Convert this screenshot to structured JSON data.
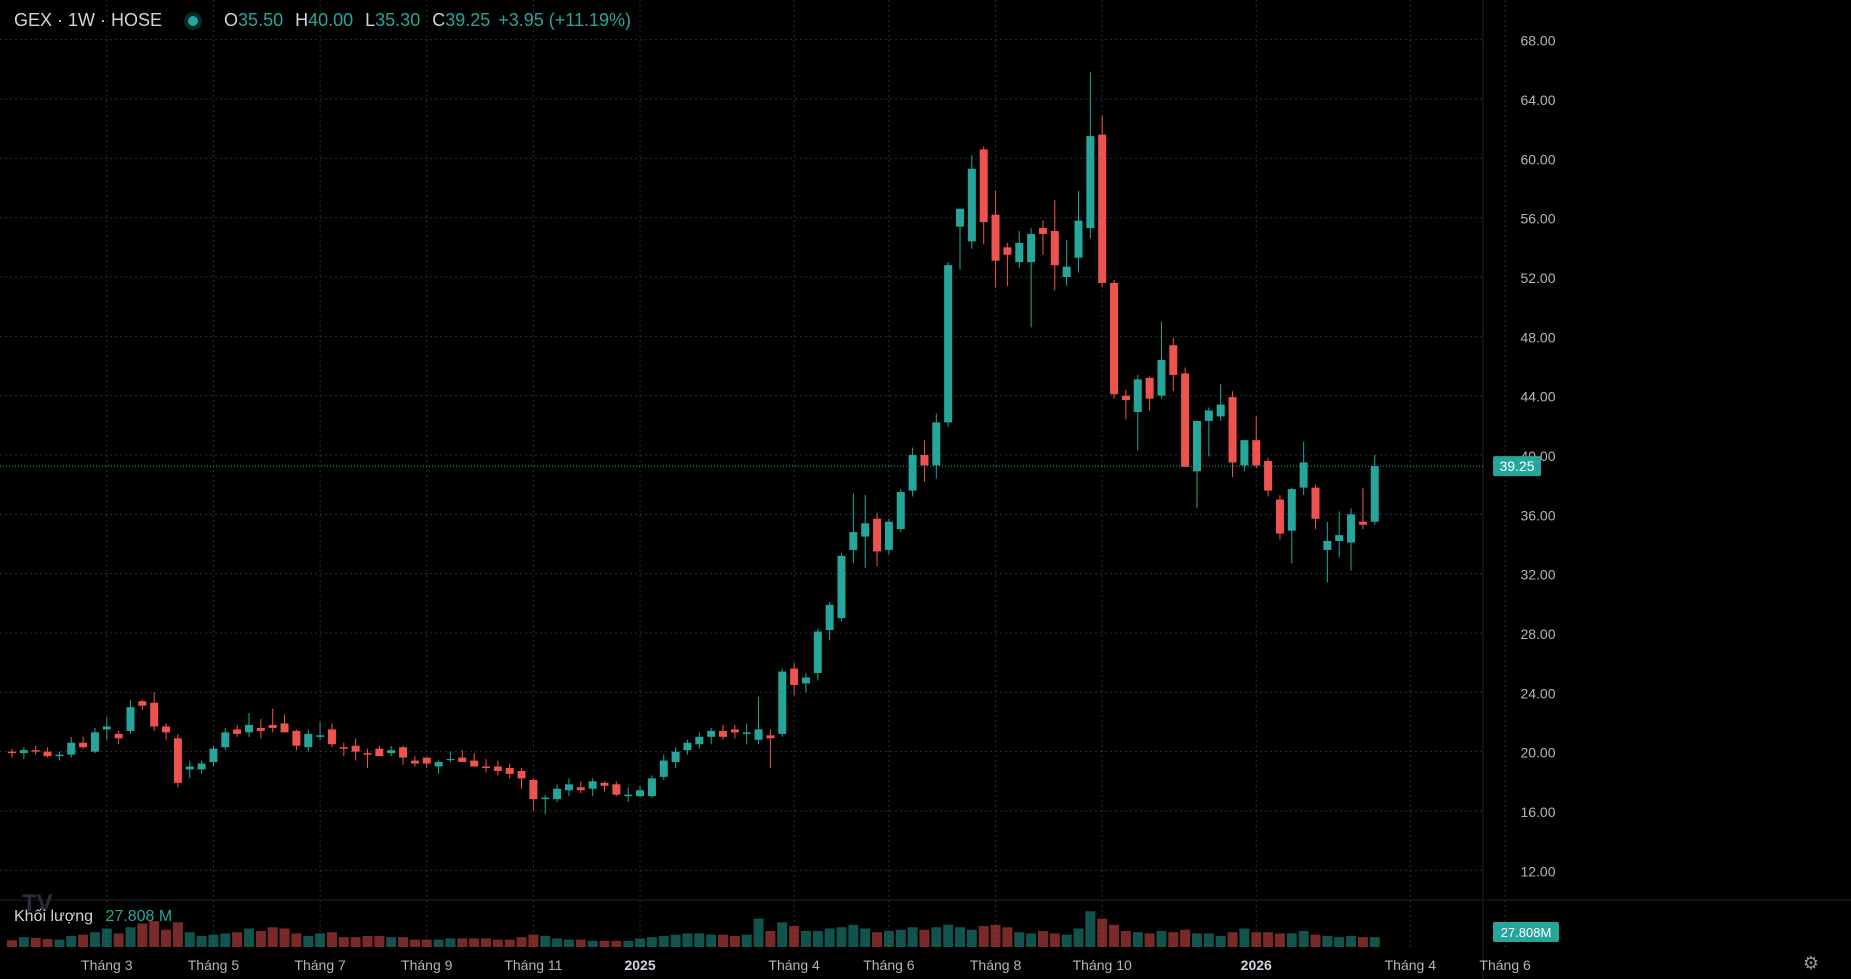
{
  "header": {
    "symbol": "GEX · 1W · HOSE",
    "o_key": "O",
    "o_val": "35.50",
    "h_key": "H",
    "h_val": "40.00",
    "l_key": "L",
    "l_val": "35.30",
    "c_key": "C",
    "c_val": "39.25",
    "change": "+3.95 (+11.19%)"
  },
  "volume_pane": {
    "label": "Khối lượng",
    "value": "27.808 M",
    "badge": "27.808M"
  },
  "last_price_badge": "39.25",
  "colors": {
    "up": "#26a69a",
    "down": "#ef5350",
    "background": "#000000",
    "grid": "#2a2e39",
    "text": "#d1d4dc"
  },
  "icons": {
    "settings": "gear-icon",
    "logo": "tradingview-logo-icon"
  },
  "chart_data": {
    "type": "candlestick",
    "ylim": [
      10,
      70
    ],
    "y_ticks": [
      "68.00",
      "64.00",
      "60.00",
      "56.00",
      "52.00",
      "48.00",
      "44.00",
      "40.00",
      "36.00",
      "32.00",
      "28.00",
      "24.00",
      "20.00",
      "16.00",
      "12.00"
    ],
    "x_tick_labels": [
      {
        "label": "Tháng 3",
        "bar": 8,
        "bold": false
      },
      {
        "label": "Tháng 5",
        "bar": 17,
        "bold": false
      },
      {
        "label": "Tháng 7",
        "bar": 26,
        "bold": false
      },
      {
        "label": "Tháng 9",
        "bar": 35,
        "bold": false
      },
      {
        "label": "Tháng 11",
        "bar": 44,
        "bold": false
      },
      {
        "label": "2025",
        "bar": 53,
        "bold": true
      },
      {
        "label": "Tháng 4",
        "bar": 66,
        "bold": false
      },
      {
        "label": "Tháng 6",
        "bar": 74,
        "bold": false
      },
      {
        "label": "Tháng 8",
        "bar": 83,
        "bold": false
      },
      {
        "label": "Tháng 10",
        "bar": 92,
        "bold": false
      },
      {
        "label": "2026",
        "bar": 105,
        "bold": true
      },
      {
        "label": "Tháng 4",
        "bar": 118,
        "bold": false
      },
      {
        "label": "Tháng 6",
        "bar": 126,
        "bold": false
      }
    ],
    "vol_ylim": [
      0,
      3
    ],
    "ohlcv": [
      [
        20.0,
        20.2,
        19.6,
        19.9,
        0.55
      ],
      [
        19.9,
        20.3,
        19.5,
        20.1,
        0.8
      ],
      [
        20.1,
        20.4,
        19.8,
        20.0,
        0.75
      ],
      [
        20.0,
        20.3,
        19.6,
        19.7,
        0.65
      ],
      [
        19.7,
        20.0,
        19.4,
        19.8,
        0.6
      ],
      [
        19.8,
        21.0,
        19.6,
        20.6,
        0.9
      ],
      [
        20.6,
        21.0,
        20.2,
        20.3,
        1.0
      ],
      [
        20.0,
        21.6,
        19.9,
        21.3,
        1.2
      ],
      [
        21.5,
        22.3,
        20.8,
        21.7,
        1.5
      ],
      [
        21.2,
        21.4,
        20.5,
        20.9,
        1.1
      ],
      [
        21.4,
        23.5,
        21.2,
        23.0,
        1.6
      ],
      [
        23.4,
        23.5,
        22.8,
        23.1,
        1.9
      ],
      [
        23.3,
        24.0,
        21.4,
        21.7,
        2.1
      ],
      [
        21.7,
        21.9,
        20.8,
        21.3,
        1.4
      ],
      [
        20.9,
        21.2,
        17.6,
        17.9,
        2.0
      ],
      [
        18.8,
        19.4,
        18.2,
        19.0,
        1.2
      ],
      [
        18.8,
        19.4,
        18.5,
        19.2,
        0.9
      ],
      [
        19.3,
        20.4,
        19.0,
        20.2,
        1.0
      ],
      [
        20.3,
        21.6,
        20.1,
        21.3,
        1.1
      ],
      [
        21.5,
        21.8,
        21.0,
        21.2,
        1.2
      ],
      [
        21.3,
        22.6,
        21.0,
        21.8,
        1.5
      ],
      [
        21.6,
        22.2,
        20.9,
        21.4,
        1.3
      ],
      [
        21.8,
        22.9,
        21.3,
        21.6,
        1.6
      ],
      [
        21.9,
        22.5,
        21.3,
        21.3,
        1.5
      ],
      [
        21.4,
        21.5,
        20.1,
        20.4,
        1.1
      ],
      [
        20.3,
        21.5,
        20.0,
        21.2,
        0.9
      ],
      [
        21.0,
        22.0,
        20.8,
        21.1,
        1.1
      ],
      [
        21.5,
        21.9,
        20.3,
        20.5,
        1.2
      ],
      [
        20.3,
        20.6,
        19.7,
        20.2,
        0.8
      ],
      [
        20.4,
        20.9,
        19.4,
        20.0,
        0.8
      ],
      [
        19.9,
        20.2,
        18.9,
        19.8,
        0.9
      ],
      [
        20.2,
        20.4,
        19.7,
        19.7,
        0.9
      ],
      [
        19.9,
        20.4,
        19.7,
        20.1,
        0.8
      ],
      [
        20.3,
        20.4,
        19.1,
        19.6,
        0.8
      ],
      [
        19.4,
        19.7,
        19.0,
        19.2,
        0.6
      ],
      [
        19.6,
        19.6,
        18.9,
        19.2,
        0.6
      ],
      [
        19.0,
        19.4,
        18.5,
        19.3,
        0.6
      ],
      [
        19.5,
        20.0,
        19.3,
        19.5,
        0.7
      ],
      [
        19.6,
        20.1,
        19.3,
        19.3,
        0.7
      ],
      [
        19.4,
        19.9,
        19.1,
        19.0,
        0.7
      ],
      [
        19.0,
        19.5,
        18.6,
        18.9,
        0.7
      ],
      [
        19.0,
        19.4,
        18.4,
        18.7,
        0.6
      ],
      [
        18.9,
        19.2,
        18.2,
        18.5,
        0.6
      ],
      [
        18.7,
        18.9,
        17.5,
        18.2,
        0.8
      ],
      [
        18.1,
        18.2,
        16.0,
        16.8,
        1.0
      ],
      [
        16.8,
        17.1,
        15.8,
        16.9,
        0.9
      ],
      [
        16.8,
        17.8,
        16.6,
        17.5,
        0.7
      ],
      [
        17.4,
        18.2,
        17.0,
        17.8,
        0.6
      ],
      [
        17.6,
        18.0,
        17.2,
        17.4,
        0.6
      ],
      [
        17.5,
        18.2,
        17.0,
        18.0,
        0.5
      ],
      [
        17.9,
        18.0,
        17.3,
        17.7,
        0.5
      ],
      [
        17.8,
        18.0,
        17.0,
        17.1,
        0.5
      ],
      [
        17.0,
        17.6,
        16.6,
        17.1,
        0.5
      ],
      [
        17.0,
        17.7,
        16.9,
        17.4,
        0.7
      ],
      [
        17.0,
        18.4,
        16.9,
        18.2,
        0.8
      ],
      [
        18.3,
        19.8,
        18.1,
        19.4,
        0.9
      ],
      [
        19.3,
        20.3,
        18.9,
        20.0,
        1.0
      ],
      [
        20.1,
        20.8,
        19.8,
        20.6,
        1.1
      ],
      [
        20.5,
        21.3,
        20.2,
        21.0,
        1.1
      ],
      [
        21.0,
        21.6,
        20.5,
        21.4,
        1.0
      ],
      [
        21.4,
        21.8,
        20.8,
        21.0,
        1.0
      ],
      [
        21.5,
        21.8,
        20.9,
        21.3,
        0.9
      ],
      [
        21.2,
        21.9,
        20.5,
        21.3,
        1.0
      ],
      [
        20.8,
        23.7,
        20.5,
        21.5,
        2.3
      ],
      [
        21.1,
        21.5,
        18.9,
        20.9,
        1.3
      ],
      [
        21.2,
        25.6,
        21.0,
        25.4,
        2.0
      ],
      [
        25.6,
        26.0,
        23.8,
        24.5,
        1.7
      ],
      [
        24.6,
        25.3,
        24.0,
        25.0,
        1.3
      ],
      [
        25.3,
        28.3,
        24.8,
        28.1,
        1.3
      ],
      [
        28.2,
        30.1,
        27.5,
        29.9,
        1.5
      ],
      [
        29.0,
        33.4,
        28.8,
        33.2,
        1.6
      ],
      [
        33.6,
        37.4,
        32.7,
        34.8,
        1.8
      ],
      [
        34.5,
        37.3,
        32.4,
        35.4,
        1.5
      ],
      [
        35.7,
        36.1,
        32.5,
        33.5,
        1.2
      ],
      [
        33.6,
        35.7,
        33.3,
        35.5,
        1.3
      ],
      [
        35.0,
        37.7,
        34.8,
        37.5,
        1.4
      ],
      [
        37.6,
        40.5,
        37.2,
        40.0,
        1.6
      ],
      [
        40.0,
        41.0,
        38.2,
        39.3,
        1.4
      ],
      [
        39.3,
        42.8,
        38.4,
        42.2,
        1.6
      ],
      [
        42.2,
        53.0,
        41.9,
        52.8,
        1.8
      ],
      [
        55.4,
        56.4,
        52.5,
        56.6,
        1.6
      ],
      [
        54.4,
        60.2,
        53.9,
        59.3,
        1.4
      ],
      [
        60.6,
        60.8,
        54.2,
        55.7,
        1.7
      ],
      [
        56.2,
        57.8,
        51.3,
        53.1,
        1.8
      ],
      [
        54.0,
        54.3,
        51.4,
        53.5,
        1.6
      ],
      [
        53.0,
        55.1,
        52.6,
        54.3,
        1.2
      ],
      [
        53.0,
        55.3,
        48.6,
        54.9,
        1.1
      ],
      [
        55.3,
        55.8,
        53.5,
        54.9,
        1.3
      ],
      [
        55.1,
        57.2,
        51.1,
        52.8,
        1.1
      ],
      [
        52.0,
        54.5,
        51.4,
        52.7,
        1.0
      ],
      [
        53.3,
        57.8,
        52.3,
        55.8,
        1.5
      ],
      [
        55.3,
        65.8,
        54.6,
        61.5,
        2.9
      ],
      [
        61.6,
        62.9,
        51.3,
        51.6,
        2.3
      ],
      [
        51.6,
        51.8,
        43.8,
        44.1,
        1.8
      ],
      [
        44.0,
        44.4,
        42.4,
        43.7,
        1.3
      ],
      [
        42.9,
        45.4,
        40.3,
        45.1,
        1.2
      ],
      [
        45.2,
        45.3,
        43.0,
        43.8,
        1.1
      ],
      [
        44.0,
        49.0,
        43.8,
        46.4,
        1.3
      ],
      [
        47.4,
        47.9,
        44.3,
        45.4,
        1.2
      ],
      [
        45.5,
        45.9,
        39.4,
        39.2,
        1.4
      ],
      [
        38.9,
        42.3,
        36.4,
        42.3,
        1.1
      ],
      [
        42.3,
        43.2,
        39.9,
        43.0,
        1.1
      ],
      [
        42.6,
        44.8,
        42.3,
        43.4,
        0.9
      ],
      [
        43.9,
        44.3,
        38.5,
        39.5,
        1.2
      ],
      [
        39.3,
        41.0,
        38.9,
        41.0,
        1.5
      ],
      [
        41.0,
        42.6,
        39.1,
        39.3,
        1.2
      ],
      [
        39.6,
        39.8,
        37.2,
        37.6,
        1.2
      ],
      [
        37.0,
        37.3,
        34.3,
        34.7,
        1.1
      ],
      [
        34.9,
        37.8,
        32.7,
        37.7,
        1.1
      ],
      [
        37.8,
        40.9,
        37.3,
        39.5,
        1.3
      ],
      [
        37.8,
        38.0,
        35.0,
        35.7,
        1.0
      ],
      [
        33.6,
        35.5,
        31.4,
        34.2,
        0.9
      ],
      [
        34.2,
        36.2,
        33.1,
        34.6,
        0.8
      ],
      [
        34.1,
        36.4,
        32.2,
        36.0,
        0.9
      ],
      [
        35.5,
        37.8,
        35.0,
        35.3,
        0.8
      ],
      [
        35.5,
        40.0,
        35.3,
        39.25,
        0.8
      ]
    ]
  }
}
